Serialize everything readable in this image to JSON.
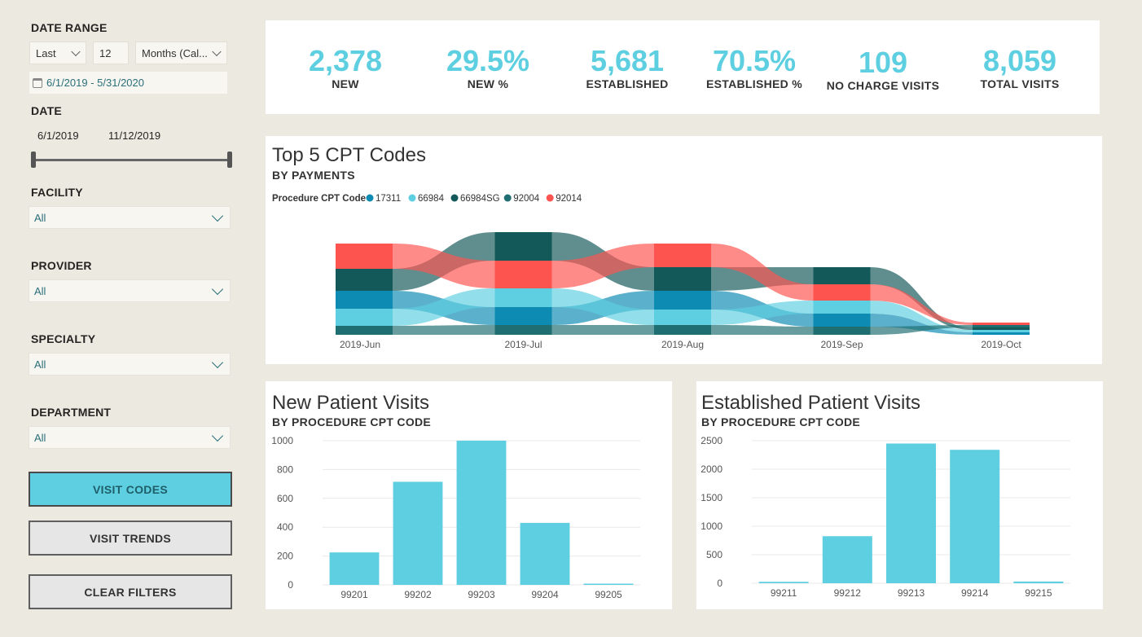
{
  "sidebar": {
    "date_range_label": "DATE RANGE",
    "range_mode": "Last",
    "range_count": "12",
    "range_unit": "Months (Cal...",
    "range_text": "6/1/2019 - 5/31/2020",
    "date_label": "DATE",
    "date_start": "6/1/2019",
    "date_end": "11/12/2019",
    "facility_label": "FACILITY",
    "facility_value": "All",
    "provider_label": "PROVIDER",
    "provider_value": "All",
    "specialty_label": "SPECIALTY",
    "specialty_value": "All",
    "department_label": "DEPARTMENT",
    "department_value": "All",
    "btn_visit_codes": "VISIT CODES",
    "btn_visit_trends": "VISIT TRENDS",
    "btn_clear_filters": "CLEAR FILTERS"
  },
  "kpis": [
    {
      "value": "2,378",
      "label": "NEW"
    },
    {
      "value": "29.5%",
      "label": "NEW %"
    },
    {
      "value": "5,681",
      "label": "ESTABLISHED"
    },
    {
      "value": "70.5%",
      "label": "ESTABLISHED %"
    },
    {
      "value": "109",
      "label": "NO CHARGE VISITS"
    },
    {
      "value": "8,059",
      "label": "TOTAL VISITS"
    }
  ],
  "colors": {
    "accent": "#5ecfe0",
    "c17311": "#0e8bb2",
    "c66984": "#5ecfe0",
    "c66984SG": "#14595a",
    "c92004": "#1f6e72",
    "c92014": "#fd5450"
  },
  "chart_data": [
    {
      "type": "area",
      "title": "Top 5 CPT Codes",
      "subtitle": "BY PAYMENTS",
      "legend_title": "Procedure CPT Code",
      "legend_position": "top-left",
      "x": [
        "2019-Jun",
        "2019-Jul",
        "2019-Aug",
        "2019-Sep",
        "2019-Oct"
      ],
      "series": [
        {
          "name": "17311",
          "values": [
            22,
            22,
            23,
            16,
            3
          ]
        },
        {
          "name": "66984",
          "values": [
            21,
            23,
            19,
            16,
            3
          ]
        },
        {
          "name": "66984SG",
          "values": [
            27,
            35,
            29,
            21,
            3
          ]
        },
        {
          "name": "92004",
          "values": [
            11,
            12,
            12,
            10,
            3
          ]
        },
        {
          "name": "92014",
          "values": [
            31,
            34,
            29,
            20,
            3
          ]
        }
      ]
    },
    {
      "type": "bar",
      "title": "New Patient Visits",
      "subtitle": "BY PROCEDURE CPT CODE",
      "categories": [
        "99201",
        "99202",
        "99203",
        "99204",
        "99205"
      ],
      "values": [
        225,
        715,
        1000,
        430,
        8
      ],
      "ylim": [
        0,
        1000
      ],
      "yticks": [
        0,
        200,
        400,
        600,
        800,
        1000
      ]
    },
    {
      "type": "bar",
      "title": "Established Patient Visits",
      "subtitle": "BY PROCEDURE CPT CODE",
      "categories": [
        "99211",
        "99212",
        "99213",
        "99214",
        "99215"
      ],
      "values": [
        25,
        825,
        2450,
        2340,
        30
      ],
      "ylim": [
        0,
        2500
      ],
      "yticks": [
        0,
        500,
        1000,
        1500,
        2000,
        2500
      ]
    }
  ]
}
